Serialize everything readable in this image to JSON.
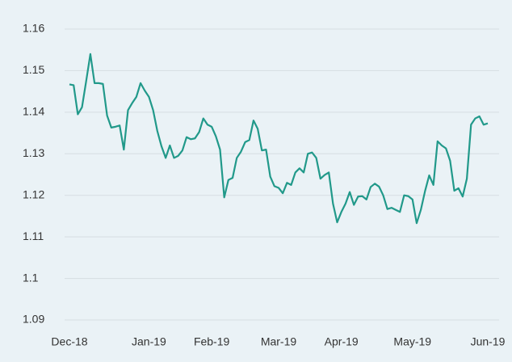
{
  "chart_data": {
    "type": "line",
    "categories": [
      "Dec-18",
      null,
      null,
      null,
      null,
      null,
      null,
      null,
      null,
      null,
      null,
      null,
      null,
      null,
      null,
      null,
      null,
      null,
      null,
      "Jan-19",
      null,
      null,
      null,
      null,
      null,
      null,
      null,
      null,
      null,
      null,
      null,
      null,
      null,
      null,
      "Feb-19",
      null,
      null,
      null,
      null,
      null,
      null,
      null,
      null,
      null,
      null,
      null,
      null,
      null,
      null,
      null,
      "Mar-19",
      null,
      null,
      null,
      null,
      null,
      null,
      null,
      null,
      null,
      null,
      null,
      null,
      null,
      null,
      "Apr-19",
      null,
      null,
      null,
      null,
      null,
      null,
      null,
      null,
      null,
      null,
      null,
      null,
      null,
      null,
      null,
      null,
      "May-19",
      null,
      null,
      null,
      null,
      null,
      null,
      null,
      null,
      null,
      null,
      null,
      null,
      null,
      null,
      null,
      null,
      null,
      "Jun-19"
    ],
    "series": [
      {
        "color": "#21998a",
        "values": [
          1.1467,
          1.1465,
          1.1395,
          1.1412,
          1.1475,
          1.154,
          1.147,
          1.147,
          1.1468,
          1.1392,
          1.1363,
          1.1365,
          1.1368,
          1.131,
          1.1405,
          1.1422,
          1.1437,
          1.147,
          1.1452,
          1.1437,
          1.1405,
          1.1355,
          1.1318,
          1.129,
          1.132,
          1.129,
          1.1295,
          1.1308,
          1.134,
          1.1335,
          1.1337,
          1.1352,
          1.1385,
          1.137,
          1.1365,
          1.1342,
          1.131,
          1.1195,
          1.1237,
          1.1242,
          1.129,
          1.1305,
          1.1328,
          1.1333,
          1.138,
          1.136,
          1.1308,
          1.131,
          1.1245,
          1.1222,
          1.1218,
          1.1205,
          1.123,
          1.1225,
          1.1255,
          1.1265,
          1.1255,
          1.13,
          1.1303,
          1.129,
          1.124,
          1.1249,
          1.1255,
          1.118,
          1.1135,
          1.116,
          1.118,
          1.1208,
          1.1177,
          1.1197,
          1.1198,
          1.119,
          1.122,
          1.1228,
          1.1221,
          1.12,
          1.1167,
          1.117,
          1.1165,
          1.116,
          1.12,
          1.1198,
          1.119,
          1.1133,
          1.1165,
          1.121,
          1.1248,
          1.1225,
          1.133,
          1.132,
          1.1313,
          1.1283,
          1.1211,
          1.1217,
          1.1197,
          1.124,
          1.137,
          1.1385,
          1.139,
          1.137,
          1.1373
        ]
      }
    ],
    "ylim": [
      1.09,
      1.16
    ],
    "yticks": [
      1.09,
      1.1,
      1.11,
      1.12,
      1.13,
      1.14,
      1.15,
      1.16
    ],
    "grid": true
  }
}
